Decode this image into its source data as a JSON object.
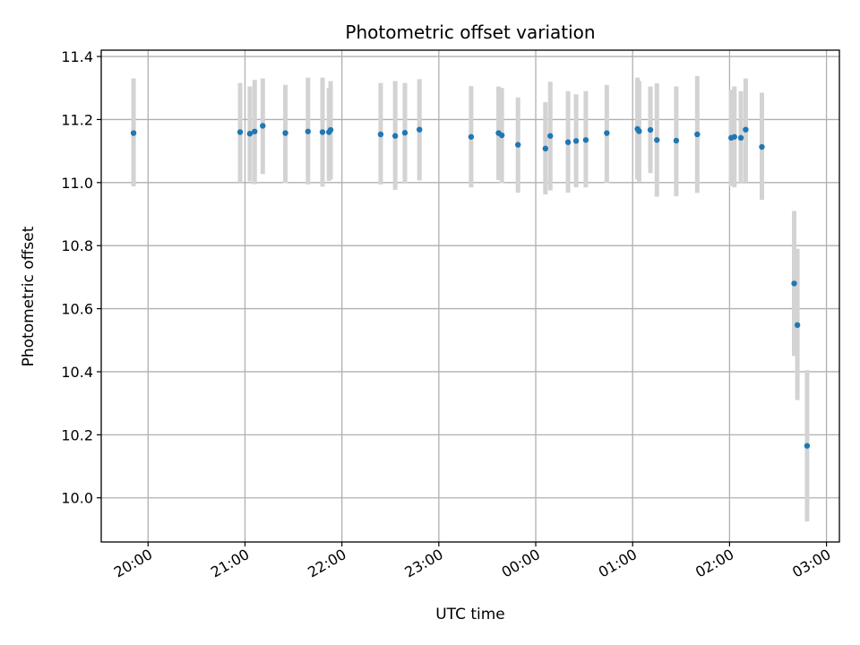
{
  "chart_data": {
    "type": "scatter",
    "title": "Photometric offset variation",
    "xlabel": "UTC time",
    "ylabel": "Photometric offset",
    "x_axis": "time",
    "xlim": [
      "19:31",
      "03:08"
    ],
    "ylim": [
      9.86,
      11.42
    ],
    "x_ticks": [
      "20:00",
      "21:00",
      "22:00",
      "23:00",
      "00:00",
      "01:00",
      "02:00",
      "03:00"
    ],
    "y_ticks": [
      "10.0",
      "10.2",
      "10.4",
      "10.6",
      "10.8",
      "11.0",
      "11.2",
      "11.4"
    ],
    "grid": true,
    "marker_color": "#1f77b4",
    "errorbar_color": "#d3d3d3",
    "points": [
      {
        "x": "19:51",
        "y": 11.157,
        "lo": 10.988,
        "hi": 11.33
      },
      {
        "x": "20:57",
        "y": 11.16,
        "lo": 11.0,
        "hi": 11.316
      },
      {
        "x": "21:03",
        "y": 11.155,
        "lo": 11.004,
        "hi": 11.305
      },
      {
        "x": "21:06",
        "y": 11.162,
        "lo": 10.995,
        "hi": 11.326
      },
      {
        "x": "21:11",
        "y": 11.18,
        "lo": 11.027,
        "hi": 11.33
      },
      {
        "x": "21:25",
        "y": 11.157,
        "lo": 10.998,
        "hi": 11.31
      },
      {
        "x": "21:39",
        "y": 11.162,
        "lo": 10.994,
        "hi": 11.333
      },
      {
        "x": "21:48",
        "y": 11.16,
        "lo": 10.987,
        "hi": 11.333
      },
      {
        "x": "21:52",
        "y": 11.16,
        "lo": 11.005,
        "hi": 11.3
      },
      {
        "x": "21:53",
        "y": 11.167,
        "lo": 11.01,
        "hi": 11.322
      },
      {
        "x": "22:24",
        "y": 11.153,
        "lo": 10.994,
        "hi": 11.316
      },
      {
        "x": "22:33",
        "y": 11.148,
        "lo": 10.977,
        "hi": 11.322
      },
      {
        "x": "22:39",
        "y": 11.158,
        "lo": 10.997,
        "hi": 11.316
      },
      {
        "x": "22:48",
        "y": 11.168,
        "lo": 11.007,
        "hi": 11.328
      },
      {
        "x": "23:20",
        "y": 11.145,
        "lo": 10.985,
        "hi": 11.306
      },
      {
        "x": "23:37",
        "y": 11.157,
        "lo": 11.008,
        "hi": 11.305
      },
      {
        "x": "23:39",
        "y": 11.15,
        "lo": 10.998,
        "hi": 11.3
      },
      {
        "x": "23:49",
        "y": 11.12,
        "lo": 10.968,
        "hi": 11.27
      },
      {
        "x": "00:06",
        "y": 11.108,
        "lo": 10.962,
        "hi": 11.255
      },
      {
        "x": "00:09",
        "y": 11.148,
        "lo": 10.975,
        "hi": 11.32
      },
      {
        "x": "00:20",
        "y": 11.128,
        "lo": 10.968,
        "hi": 11.29
      },
      {
        "x": "00:25",
        "y": 11.132,
        "lo": 10.985,
        "hi": 11.28
      },
      {
        "x": "00:31",
        "y": 11.135,
        "lo": 10.985,
        "hi": 11.29
      },
      {
        "x": "00:44",
        "y": 11.157,
        "lo": 10.998,
        "hi": 11.31
      },
      {
        "x": "01:03",
        "y": 11.17,
        "lo": 11.01,
        "hi": 11.333
      },
      {
        "x": "01:04",
        "y": 11.163,
        "lo": 11.003,
        "hi": 11.322
      },
      {
        "x": "01:11",
        "y": 11.167,
        "lo": 11.03,
        "hi": 11.305
      },
      {
        "x": "01:15",
        "y": 11.135,
        "lo": 10.955,
        "hi": 11.315
      },
      {
        "x": "01:27",
        "y": 11.133,
        "lo": 10.957,
        "hi": 11.305
      },
      {
        "x": "01:40",
        "y": 11.153,
        "lo": 10.967,
        "hi": 11.338
      },
      {
        "x": "02:01",
        "y": 11.142,
        "lo": 10.99,
        "hi": 11.295
      },
      {
        "x": "02:03",
        "y": 11.145,
        "lo": 10.985,
        "hi": 11.305
      },
      {
        "x": "02:07",
        "y": 11.142,
        "lo": 10.997,
        "hi": 11.29
      },
      {
        "x": "02:10",
        "y": 11.168,
        "lo": 11.0,
        "hi": 11.33
      },
      {
        "x": "02:20",
        "y": 11.113,
        "lo": 10.945,
        "hi": 11.285
      },
      {
        "x": "02:40",
        "y": 10.68,
        "lo": 10.45,
        "hi": 10.91
      },
      {
        "x": "02:42",
        "y": 10.548,
        "lo": 10.31,
        "hi": 10.79
      },
      {
        "x": "02:48",
        "y": 10.165,
        "lo": 9.925,
        "hi": 10.405
      }
    ]
  }
}
